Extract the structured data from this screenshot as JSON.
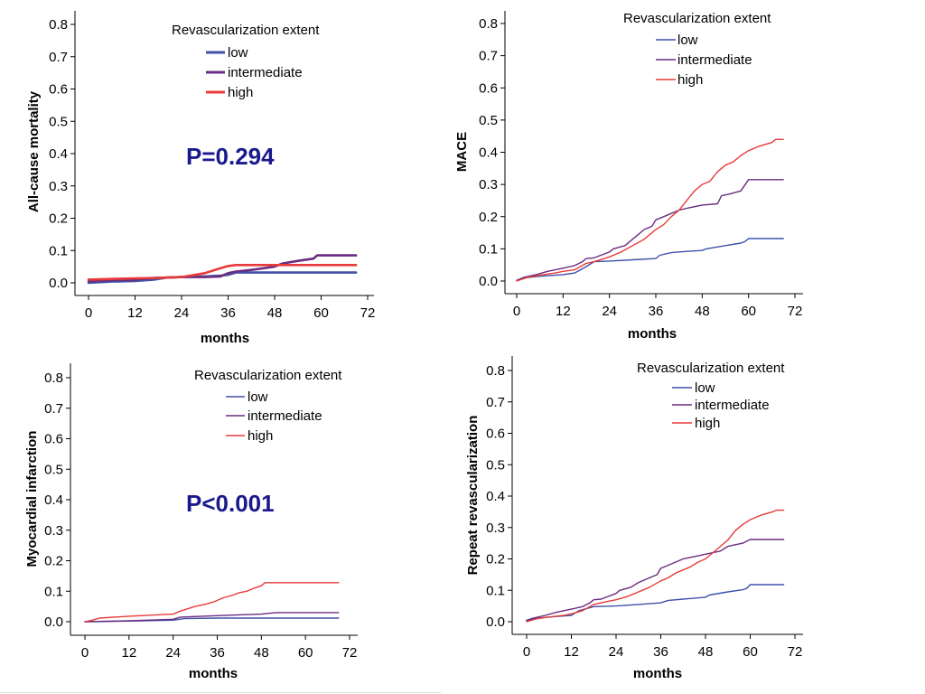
{
  "colors": {
    "low": "#3f51a8",
    "intermediate": "#6a2c80",
    "high": "#e83a3a",
    "pvalue": "#1a1a8c",
    "axis": "#000000"
  },
  "chart_data": [
    {
      "id": "mortality",
      "type": "line",
      "title": "",
      "xlabel": "months",
      "ylabel": "All-cause mortality",
      "xlim": [
        0,
        72
      ],
      "ylim": [
        0,
        0.8
      ],
      "xticks": [
        0,
        12,
        24,
        36,
        48,
        60,
        72
      ],
      "yticks": [
        "0.0",
        "0.1",
        "0.2",
        "0.3",
        "0.4",
        "0.5",
        "0.6",
        "0.7",
        "0.8"
      ],
      "legend_title": "Revascularization extent",
      "legend_position": "top-center",
      "pvalue": "P=0.294",
      "series": [
        {
          "name": "low",
          "x": [
            0,
            6,
            12,
            17,
            20,
            24,
            30,
            34,
            36,
            38,
            48,
            60,
            69
          ],
          "y": [
            0.0,
            0.004,
            0.006,
            0.01,
            0.016,
            0.018,
            0.02,
            0.022,
            0.025,
            0.032,
            0.032,
            0.032,
            0.032
          ]
        },
        {
          "name": "intermediate",
          "x": [
            0,
            6,
            12,
            17,
            24,
            30,
            34,
            36,
            38,
            42,
            48,
            50,
            54,
            58,
            59,
            69
          ],
          "y": [
            0.005,
            0.008,
            0.01,
            0.015,
            0.018,
            0.018,
            0.02,
            0.03,
            0.035,
            0.04,
            0.05,
            0.06,
            0.068,
            0.075,
            0.085,
            0.085
          ]
        },
        {
          "name": "high",
          "x": [
            0,
            6,
            12,
            18,
            24,
            30,
            34,
            36,
            38,
            48,
            60,
            69
          ],
          "y": [
            0.01,
            0.012,
            0.014,
            0.015,
            0.018,
            0.03,
            0.045,
            0.052,
            0.055,
            0.055,
            0.055,
            0.055
          ]
        }
      ]
    },
    {
      "id": "mace",
      "type": "line",
      "title": "",
      "xlabel": "months",
      "ylabel": "MACE",
      "xlim": [
        0,
        72
      ],
      "ylim": [
        0,
        0.8
      ],
      "xticks": [
        0,
        12,
        24,
        36,
        48,
        60,
        72
      ],
      "yticks": [
        "0.0",
        "0.1",
        "0.2",
        "0.3",
        "0.4",
        "0.5",
        "0.6",
        "0.7",
        "0.8"
      ],
      "legend_title": "Revascularization extent",
      "legend_position": "top-right",
      "pvalue": "",
      "series": [
        {
          "name": "low",
          "x": [
            0,
            2,
            6,
            12,
            15,
            18,
            20,
            24,
            30,
            36,
            37,
            40,
            44,
            48,
            49,
            54,
            58,
            59,
            60,
            69
          ],
          "y": [
            0.002,
            0.01,
            0.015,
            0.02,
            0.025,
            0.045,
            0.06,
            0.062,
            0.066,
            0.07,
            0.08,
            0.088,
            0.092,
            0.095,
            0.1,
            0.11,
            0.118,
            0.122,
            0.132,
            0.132
          ]
        },
        {
          "name": "intermediate",
          "x": [
            0,
            2,
            5,
            8,
            12,
            15,
            17,
            18,
            20,
            24,
            25,
            28,
            30,
            33,
            35,
            36,
            38,
            40,
            42,
            44,
            48,
            52,
            53,
            55,
            58,
            60,
            69
          ],
          "y": [
            0.002,
            0.012,
            0.02,
            0.03,
            0.04,
            0.048,
            0.06,
            0.07,
            0.072,
            0.09,
            0.1,
            0.11,
            0.13,
            0.16,
            0.17,
            0.19,
            0.2,
            0.21,
            0.22,
            0.226,
            0.236,
            0.24,
            0.265,
            0.27,
            0.28,
            0.315,
            0.315
          ]
        },
        {
          "name": "high",
          "x": [
            0,
            3,
            6,
            10,
            12,
            15,
            18,
            20,
            24,
            27,
            30,
            33,
            36,
            38,
            40,
            42,
            44,
            46,
            48,
            50,
            52,
            54,
            56,
            58,
            60,
            63,
            66,
            67,
            69
          ],
          "y": [
            0.0,
            0.012,
            0.018,
            0.025,
            0.03,
            0.035,
            0.055,
            0.06,
            0.075,
            0.09,
            0.11,
            0.13,
            0.16,
            0.175,
            0.2,
            0.22,
            0.25,
            0.28,
            0.3,
            0.31,
            0.34,
            0.36,
            0.37,
            0.39,
            0.405,
            0.42,
            0.43,
            0.44,
            0.44
          ]
        }
      ]
    },
    {
      "id": "mi",
      "type": "line",
      "title": "",
      "xlabel": "months",
      "ylabel": "Myocardial infarction",
      "xlim": [
        0,
        72
      ],
      "ylim": [
        0,
        0.8
      ],
      "xticks": [
        0,
        12,
        24,
        36,
        48,
        60,
        72
      ],
      "yticks": [
        "0.0",
        "0.1",
        "0.2",
        "0.3",
        "0.4",
        "0.5",
        "0.6",
        "0.7",
        "0.8"
      ],
      "legend_title": "Revascularization extent",
      "legend_position": "top-center",
      "pvalue": "P<0.001",
      "series": [
        {
          "name": "low",
          "x": [
            0,
            12,
            24,
            27,
            36,
            48,
            60,
            69
          ],
          "y": [
            0.0,
            0.002,
            0.005,
            0.01,
            0.012,
            0.012,
            0.012,
            0.012
          ]
        },
        {
          "name": "intermediate",
          "x": [
            0,
            12,
            24,
            26,
            36,
            48,
            52,
            60,
            69
          ],
          "y": [
            0.0,
            0.003,
            0.008,
            0.015,
            0.02,
            0.025,
            0.03,
            0.03,
            0.03
          ]
        },
        {
          "name": "high",
          "x": [
            0,
            2,
            4,
            12,
            24,
            26,
            30,
            33,
            35,
            36,
            38,
            40,
            42,
            44,
            46,
            48,
            49,
            60,
            69
          ],
          "y": [
            0.0,
            0.005,
            0.012,
            0.018,
            0.025,
            0.035,
            0.05,
            0.058,
            0.065,
            0.07,
            0.08,
            0.086,
            0.095,
            0.1,
            0.11,
            0.118,
            0.128,
            0.128,
            0.128
          ]
        }
      ]
    },
    {
      "id": "repeat",
      "type": "line",
      "title": "",
      "xlabel": "months",
      "ylabel": "Repeat revascularization",
      "xlim": [
        0,
        72
      ],
      "ylim": [
        0,
        0.8
      ],
      "xticks": [
        0,
        12,
        24,
        36,
        48,
        60,
        72
      ],
      "yticks": [
        "0.0",
        "0.1",
        "0.2",
        "0.3",
        "0.4",
        "0.5",
        "0.6",
        "0.7",
        "0.8"
      ],
      "legend_title": "Revascularization extent",
      "legend_position": "top-right",
      "pvalue": "",
      "series": [
        {
          "name": "low",
          "x": [
            0,
            2,
            6,
            12,
            14,
            18,
            24,
            30,
            36,
            38,
            42,
            48,
            49,
            54,
            58,
            59,
            60,
            69
          ],
          "y": [
            0.002,
            0.01,
            0.015,
            0.02,
            0.035,
            0.048,
            0.05,
            0.055,
            0.06,
            0.068,
            0.072,
            0.078,
            0.085,
            0.095,
            0.102,
            0.106,
            0.118,
            0.118
          ]
        },
        {
          "name": "intermediate",
          "x": [
            0,
            2,
            5,
            8,
            12,
            15,
            17,
            18,
            20,
            24,
            25,
            28,
            30,
            33,
            35,
            36,
            38,
            40,
            42,
            44,
            48,
            52,
            54,
            58,
            60,
            69
          ],
          "y": [
            0.005,
            0.012,
            0.02,
            0.03,
            0.04,
            0.048,
            0.06,
            0.07,
            0.072,
            0.09,
            0.1,
            0.11,
            0.125,
            0.14,
            0.15,
            0.17,
            0.18,
            0.19,
            0.2,
            0.205,
            0.215,
            0.225,
            0.24,
            0.25,
            0.262,
            0.262
          ]
        },
        {
          "name": "high",
          "x": [
            0,
            3,
            6,
            10,
            12,
            15,
            18,
            20,
            24,
            27,
            30,
            33,
            36,
            38,
            40,
            42,
            44,
            46,
            48,
            50,
            52,
            54,
            56,
            58,
            60,
            63,
            66,
            67,
            69
          ],
          "y": [
            0.0,
            0.01,
            0.015,
            0.02,
            0.025,
            0.035,
            0.055,
            0.06,
            0.07,
            0.08,
            0.095,
            0.11,
            0.13,
            0.14,
            0.155,
            0.165,
            0.175,
            0.19,
            0.2,
            0.22,
            0.24,
            0.26,
            0.29,
            0.31,
            0.325,
            0.34,
            0.35,
            0.355,
            0.355
          ]
        }
      ]
    }
  ]
}
